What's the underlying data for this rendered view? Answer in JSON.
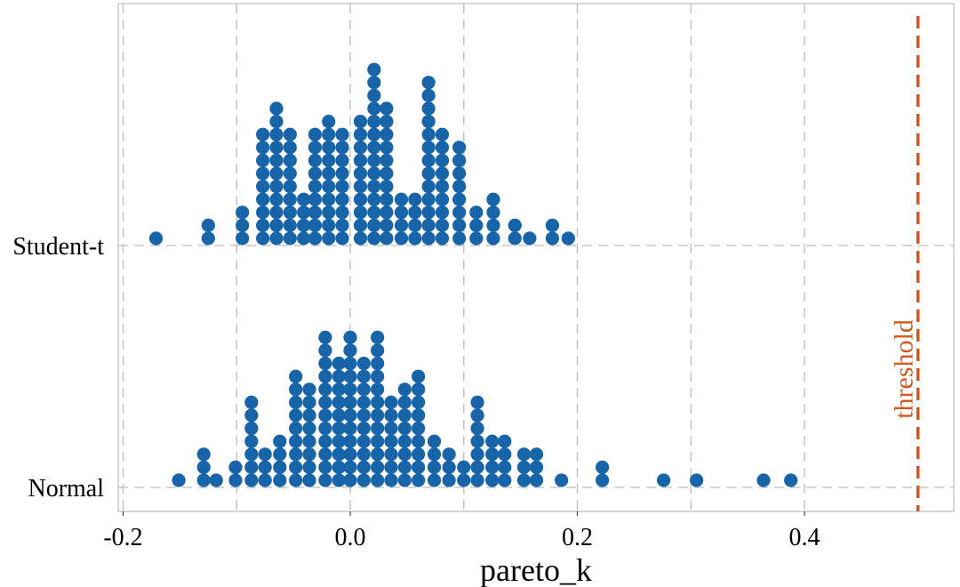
{
  "chart_data": {
    "type": "dotplot",
    "title": "",
    "xlabel": "pareto_k",
    "ylabel": "",
    "xlim": [
      -0.205,
      0.525
    ],
    "xticks": [
      -0.2,
      0.0,
      0.2,
      0.4
    ],
    "xtick_labels": [
      "-0.2",
      "0.0",
      "0.2",
      "0.4"
    ],
    "grid": true,
    "colors": {
      "dots": "#1764a8",
      "threshold": "#d4561a",
      "grid": "#bdbdbd"
    },
    "annotation": {
      "label": "threshold",
      "x": 0.5,
      "type": "vertical-dashed-line"
    },
    "series": [
      {
        "name": "Student-t",
        "stacks": [
          {
            "x": -0.171,
            "count": 1
          },
          {
            "x": -0.125,
            "count": 2
          },
          {
            "x": -0.095,
            "count": 3
          },
          {
            "x": -0.077,
            "count": 9
          },
          {
            "x": -0.065,
            "count": 11
          },
          {
            "x": -0.053,
            "count": 9
          },
          {
            "x": -0.041,
            "count": 4
          },
          {
            "x": -0.031,
            "count": 9
          },
          {
            "x": -0.019,
            "count": 10
          },
          {
            "x": -0.007,
            "count": 9
          },
          {
            "x": 0.009,
            "count": 10
          },
          {
            "x": 0.021,
            "count": 14
          },
          {
            "x": 0.032,
            "count": 11
          },
          {
            "x": 0.045,
            "count": 4
          },
          {
            "x": 0.057,
            "count": 4
          },
          {
            "x": 0.069,
            "count": 13
          },
          {
            "x": 0.081,
            "count": 9
          },
          {
            "x": 0.096,
            "count": 8
          },
          {
            "x": 0.111,
            "count": 3
          },
          {
            "x": 0.126,
            "count": 4
          },
          {
            "x": 0.145,
            "count": 2
          },
          {
            "x": 0.158,
            "count": 1
          },
          {
            "x": 0.178,
            "count": 2
          },
          {
            "x": 0.192,
            "count": 1
          }
        ]
      },
      {
        "name": "Normal",
        "stacks": [
          {
            "x": -0.151,
            "count": 1
          },
          {
            "x": -0.129,
            "count": 3
          },
          {
            "x": -0.118,
            "count": 1
          },
          {
            "x": -0.101,
            "count": 2
          },
          {
            "x": -0.087,
            "count": 7
          },
          {
            "x": -0.075,
            "count": 3
          },
          {
            "x": -0.062,
            "count": 4
          },
          {
            "x": -0.048,
            "count": 9
          },
          {
            "x": -0.036,
            "count": 8
          },
          {
            "x": -0.022,
            "count": 12
          },
          {
            "x": -0.01,
            "count": 10
          },
          {
            "x": 0.0,
            "count": 12
          },
          {
            "x": 0.012,
            "count": 10
          },
          {
            "x": 0.024,
            "count": 12
          },
          {
            "x": 0.036,
            "count": 7
          },
          {
            "x": 0.048,
            "count": 8
          },
          {
            "x": 0.06,
            "count": 9
          },
          {
            "x": 0.074,
            "count": 4
          },
          {
            "x": 0.087,
            "count": 3
          },
          {
            "x": 0.1,
            "count": 2
          },
          {
            "x": 0.112,
            "count": 7
          },
          {
            "x": 0.125,
            "count": 4
          },
          {
            "x": 0.136,
            "count": 4
          },
          {
            "x": 0.153,
            "count": 3
          },
          {
            "x": 0.164,
            "count": 3
          },
          {
            "x": 0.186,
            "count": 1
          },
          {
            "x": 0.222,
            "count": 2
          },
          {
            "x": 0.276,
            "count": 1
          },
          {
            "x": 0.305,
            "count": 1
          },
          {
            "x": 0.364,
            "count": 1
          },
          {
            "x": 0.388,
            "count": 1
          }
        ]
      }
    ]
  }
}
